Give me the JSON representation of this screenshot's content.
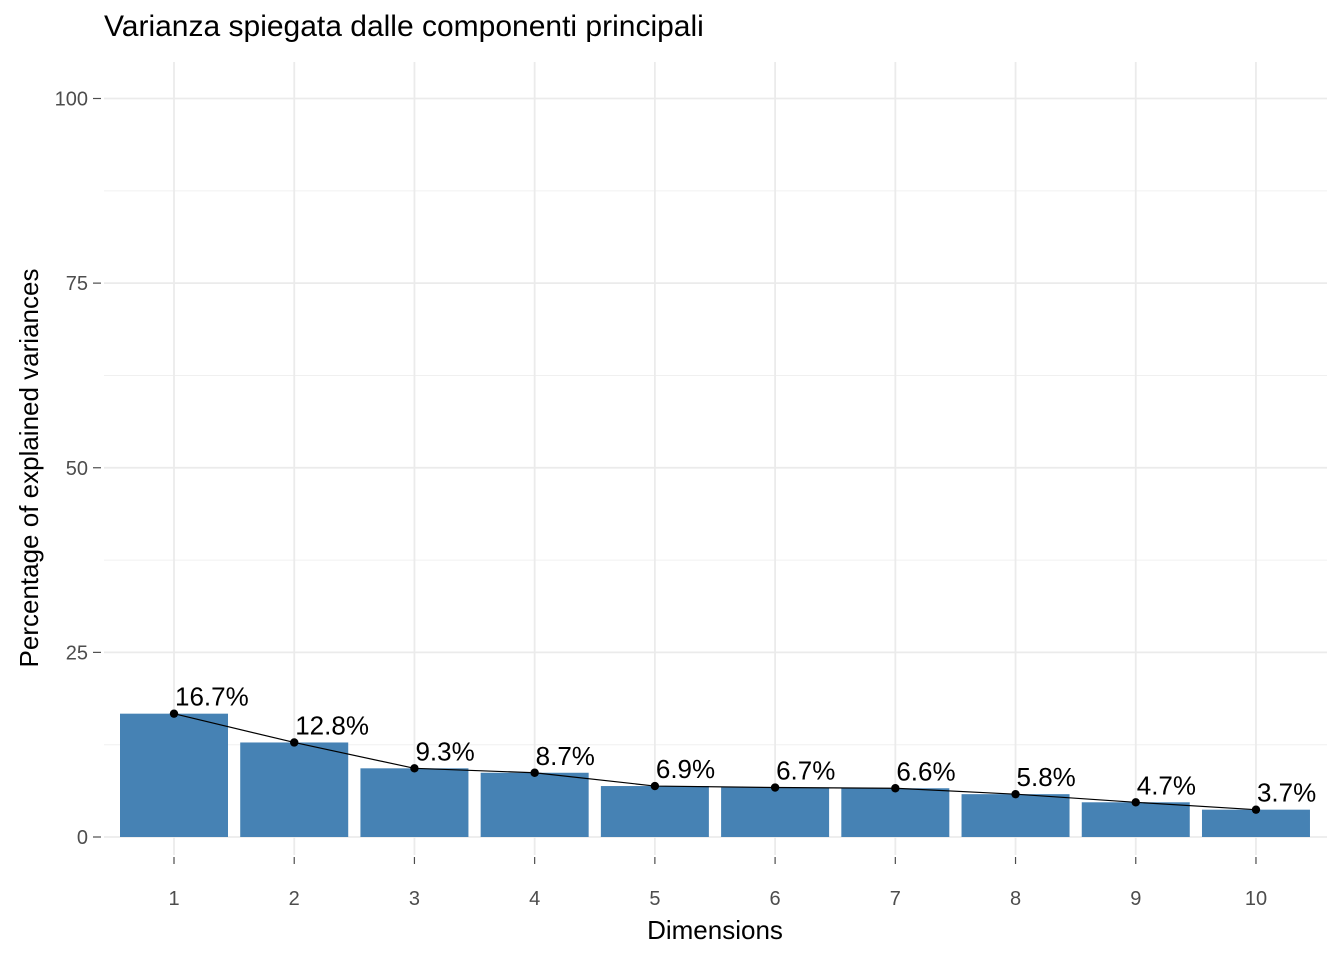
{
  "chart_data": {
    "type": "bar",
    "title": "Varianza spiegata dalle componenti principali",
    "xlabel": "Dimensions",
    "ylabel": "Percentage of explained variances",
    "categories": [
      "1",
      "2",
      "3",
      "4",
      "5",
      "6",
      "7",
      "8",
      "9",
      "10"
    ],
    "values": [
      16.7,
      12.8,
      9.3,
      8.7,
      6.9,
      6.7,
      6.6,
      5.8,
      4.7,
      3.7
    ],
    "data_labels": [
      "16.7%",
      "12.8%",
      "9.3%",
      "8.7%",
      "6.9%",
      "6.7%",
      "6.6%",
      "5.8%",
      "4.7%",
      "3.7%"
    ],
    "overlay": "line-with-points",
    "ylim": [
      0,
      105
    ],
    "yticks": [
      0,
      25,
      50,
      75,
      100
    ],
    "grid": true,
    "legend": "none",
    "bar_color": "#4682B4",
    "line_color": "#000000"
  }
}
